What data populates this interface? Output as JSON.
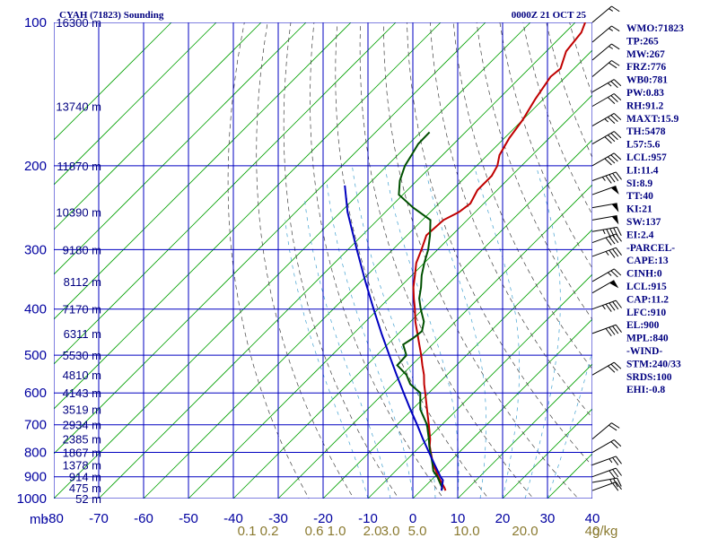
{
  "header": {
    "station_title": "CYAH (71823) Sounding",
    "valid_time": "0000Z 21 OCT 25"
  },
  "axes": {
    "y_unit": "mb",
    "mixing_ratio_unit": "g/kg"
  },
  "indices": [
    "WMO:71823",
    "TP:265",
    "MW:267",
    "FRZ:776",
    "WB0:781",
    "PW:0.83",
    "RH:91.2",
    "MAXT:15.9",
    "TH:5478",
    "L57:5.6",
    "LCL:957",
    "LI:11.4",
    "SI:8.9",
    "TT:40",
    "KI:21",
    "SW:137",
    "EI:2.4",
    "-PARCEL-",
    "CAPE:13",
    "CINH:0",
    "LCL:915",
    "CAP:11.2",
    "LFC:910",
    "EL:900",
    "MPL:840",
    "-WIND-",
    "STM:240/33",
    "SRDS:100",
    "EHI:-0.8"
  ],
  "colors": {
    "background": "#ffffff",
    "isotherm": "#00a000",
    "grid": "#0000c0",
    "temperature": "#c00000",
    "dewpoint": "#005000",
    "parcel": "#0000c0",
    "dry_adiabat": "#404040",
    "moist_adiabat": "#40a0d0",
    "label_blue": "#000080",
    "mixing_ratio_label": "#8a7a30"
  },
  "chart_data": {
    "type": "line",
    "title": "CYAH (71823) Sounding",
    "subtitle": "0000Z 21 OCT 25",
    "chart_kind": "skew-T log-P",
    "xlabel": "",
    "ylabel": "mb",
    "xlim": [
      -80,
      40
    ],
    "ylim": [
      1000,
      100
    ],
    "y_scale": "log",
    "grid": true,
    "x_ticks": [
      -80,
      -70,
      -60,
      -50,
      -40,
      -30,
      -20,
      -10,
      0,
      10,
      20,
      30,
      40
    ],
    "x_tick_labels": [
      "-80",
      "-70",
      "-60",
      "-50",
      "-40",
      "-30",
      "-20",
      "-10",
      "0",
      "10",
      "20",
      "30",
      "40"
    ],
    "pressure_levels": [
      100,
      200,
      300,
      400,
      500,
      600,
      700,
      800,
      900,
      1000
    ],
    "pressure_labels": [
      "100",
      "200",
      "300",
      "400",
      "500",
      "600",
      "700",
      "800",
      "900",
      "1000"
    ],
    "height_labels": [
      {
        "p": 100,
        "label": "16300 m"
      },
      {
        "p": 150,
        "label": "13740 m"
      },
      {
        "p": 200,
        "label": "11870 m"
      },
      {
        "p": 250,
        "label": "10390 m"
      },
      {
        "p": 300,
        "label": "9180 m"
      },
      {
        "p": 350,
        "label": "8112 m"
      },
      {
        "p": 400,
        "label": "7170 m"
      },
      {
        "p": 450,
        "label": "6311 m"
      },
      {
        "p": 500,
        "label": "5530 m"
      },
      {
        "p": 550,
        "label": "4810 m"
      },
      {
        "p": 600,
        "label": "4143 m"
      },
      {
        "p": 650,
        "label": "3519 m"
      },
      {
        "p": 700,
        "label": "2934 m"
      },
      {
        "p": 750,
        "label": "2385 m"
      },
      {
        "p": 800,
        "label": "1867 m"
      },
      {
        "p": 850,
        "label": "1378 m"
      },
      {
        "p": 900,
        "label": "914 m"
      },
      {
        "p": 950,
        "label": "475 m"
      },
      {
        "p": 1000,
        "label": "52 m"
      }
    ],
    "mixing_ratio_labels": [
      "0.1",
      "0.2",
      "0.6",
      "1.0",
      "2.0",
      "3.0",
      "5.0",
      "10.0",
      "20.0",
      "40"
    ],
    "mixing_ratio_values": [
      0.1,
      0.2,
      0.6,
      1.0,
      2.0,
      3.0,
      5.0,
      10.0,
      20.0,
      40.0
    ],
    "mixing_ratio_axis_temp": [
      -37,
      -32,
      -22,
      -17,
      -9,
      -5,
      1,
      12,
      25,
      40
    ],
    "series": [
      {
        "key": "temperature",
        "points": [
          [
            962,
            5.5
          ],
          [
            950,
            4.7
          ],
          [
            925,
            2.8
          ],
          [
            900,
            0.8
          ],
          [
            875,
            -1.0
          ],
          [
            850,
            -2.9
          ],
          [
            825,
            -4.6
          ],
          [
            800,
            -6.3
          ],
          [
            775,
            -8.0
          ],
          [
            750,
            -9.4
          ],
          [
            700,
            -12.9
          ],
          [
            650,
            -16.7
          ],
          [
            600,
            -20.8
          ],
          [
            575,
            -23.0
          ],
          [
            550,
            -25.1
          ],
          [
            525,
            -27.6
          ],
          [
            500,
            -30.1
          ],
          [
            475,
            -32.9
          ],
          [
            450,
            -35.8
          ],
          [
            425,
            -38.9
          ],
          [
            400,
            -41.8
          ],
          [
            380,
            -44.4
          ],
          [
            360,
            -47.0
          ],
          [
            340,
            -49.3
          ],
          [
            320,
            -51.8
          ],
          [
            300,
            -53.6
          ],
          [
            280,
            -55.7
          ],
          [
            260,
            -55.3
          ],
          [
            250,
            -53.6
          ],
          [
            240,
            -53.0
          ],
          [
            225,
            -54.4
          ],
          [
            210,
            -54.4
          ],
          [
            200,
            -55.4
          ],
          [
            190,
            -57.3
          ],
          [
            175,
            -58.9
          ],
          [
            160,
            -60.0
          ],
          [
            145,
            -61.8
          ],
          [
            130,
            -63.4
          ],
          [
            125,
            -63.0
          ],
          [
            115,
            -65.6
          ],
          [
            105,
            -66.4
          ],
          [
            100,
            -67.8
          ]
        ]
      },
      {
        "key": "dewpoint",
        "points": [
          [
            962,
            4.6
          ],
          [
            950,
            4.2
          ],
          [
            925,
            2.4
          ],
          [
            900,
            0.6
          ],
          [
            875,
            -1.6
          ],
          [
            850,
            -3.1
          ],
          [
            825,
            -4.7
          ],
          [
            800,
            -6.4
          ],
          [
            775,
            -8.1
          ],
          [
            750,
            -9.7
          ],
          [
            700,
            -13.3
          ],
          [
            650,
            -18.2
          ],
          [
            600,
            -21.9
          ],
          [
            575,
            -26.1
          ],
          [
            550,
            -29.0
          ],
          [
            525,
            -33.2
          ],
          [
            500,
            -33.4
          ],
          [
            475,
            -36.5
          ],
          [
            460,
            -35.7
          ],
          [
            445,
            -35.3
          ],
          [
            425,
            -37.0
          ],
          [
            400,
            -40.5
          ],
          [
            380,
            -43.2
          ],
          [
            360,
            -45.3
          ],
          [
            340,
            -47.8
          ],
          [
            320,
            -50.0
          ],
          [
            300,
            -52.1
          ],
          [
            280,
            -54.9
          ],
          [
            260,
            -58.2
          ],
          [
            245,
            -64.8
          ],
          [
            230,
            -70.9
          ],
          [
            215,
            -73.8
          ],
          [
            200,
            -76.0
          ],
          [
            190,
            -76.9
          ],
          [
            180,
            -77.9
          ],
          [
            170,
            -78.0
          ]
        ]
      },
      {
        "key": "parcel",
        "points": [
          [
            962,
            4.6
          ],
          [
            950,
            4.1
          ],
          [
            915,
            2.6
          ],
          [
            900,
            1.3
          ],
          [
            850,
            -2.6
          ],
          [
            800,
            -6.7
          ],
          [
            750,
            -11.0
          ],
          [
            700,
            -15.5
          ],
          [
            650,
            -20.4
          ],
          [
            600,
            -25.6
          ],
          [
            550,
            -31.2
          ],
          [
            500,
            -37.2
          ],
          [
            450,
            -43.8
          ],
          [
            400,
            -51.0
          ],
          [
            350,
            -59.0
          ],
          [
            300,
            -68.0
          ],
          [
            250,
            -78.5
          ],
          [
            220,
            -85.0
          ]
        ]
      }
    ],
    "wind_barbs": [
      {
        "p": 962,
        "dir_deg": 250,
        "speed_kt": 20
      },
      {
        "p": 925,
        "dir_deg": 260,
        "speed_kt": 25
      },
      {
        "p": 900,
        "dir_deg": 250,
        "speed_kt": 30
      },
      {
        "p": 850,
        "dir_deg": 250,
        "speed_kt": 25
      },
      {
        "p": 800,
        "dir_deg": 240,
        "speed_kt": 20
      },
      {
        "p": 750,
        "dir_deg": 230,
        "speed_kt": 20
      },
      {
        "p": 550,
        "dir_deg": 240,
        "speed_kt": 30
      },
      {
        "p": 450,
        "dir_deg": 250,
        "speed_kt": 40
      },
      {
        "p": 400,
        "dir_deg": 250,
        "speed_kt": 45
      },
      {
        "p": 370,
        "dir_deg": 240,
        "speed_kt": 50
      },
      {
        "p": 350,
        "dir_deg": 240,
        "speed_kt": 25
      },
      {
        "p": 310,
        "dir_deg": 250,
        "speed_kt": 35
      },
      {
        "p": 290,
        "dir_deg": 250,
        "speed_kt": 40
      },
      {
        "p": 275,
        "dir_deg": 260,
        "speed_kt": 45
      },
      {
        "p": 260,
        "dir_deg": 260,
        "speed_kt": 50
      },
      {
        "p": 245,
        "dir_deg": 260,
        "speed_kt": 55
      },
      {
        "p": 230,
        "dir_deg": 250,
        "speed_kt": 50
      },
      {
        "p": 215,
        "dir_deg": 250,
        "speed_kt": 45
      },
      {
        "p": 200,
        "dir_deg": 240,
        "speed_kt": 40
      },
      {
        "p": 180,
        "dir_deg": 240,
        "speed_kt": 40
      },
      {
        "p": 165,
        "dir_deg": 240,
        "speed_kt": 35
      },
      {
        "p": 150,
        "dir_deg": 240,
        "speed_kt": 30
      },
      {
        "p": 140,
        "dir_deg": 240,
        "speed_kt": 25
      },
      {
        "p": 130,
        "dir_deg": 230,
        "speed_kt": 20
      },
      {
        "p": 120,
        "dir_deg": 230,
        "speed_kt": 15
      },
      {
        "p": 110,
        "dir_deg": 230,
        "speed_kt": 15
      },
      {
        "p": 100,
        "dir_deg": 230,
        "speed_kt": 15
      }
    ]
  }
}
